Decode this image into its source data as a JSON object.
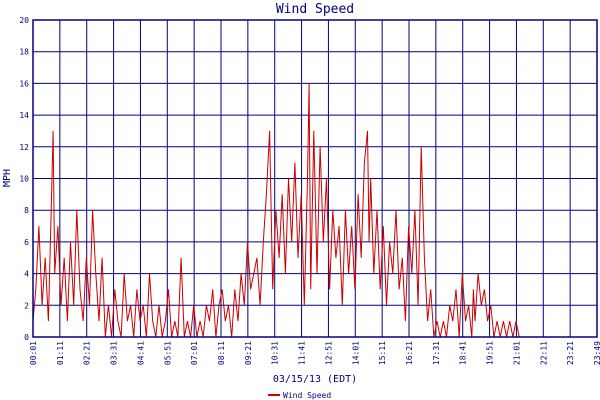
{
  "colors": {
    "grid": "#000080",
    "series": "#cc0000",
    "text": "#000080",
    "background": "#ffffff"
  },
  "chart_data": {
    "type": "line",
    "title": "Wind Speed",
    "xlabel": "03/15/13 (EDT)",
    "ylabel": "MPH",
    "ylim": [
      0,
      20
    ],
    "y_ticks": [
      0,
      2,
      4,
      6,
      8,
      10,
      12,
      14,
      16,
      18,
      20
    ],
    "x_ticks": [
      "00:01",
      "01:11",
      "02:21",
      "03:31",
      "04:41",
      "05:51",
      "07:01",
      "08:11",
      "09:21",
      "10:31",
      "11:41",
      "12:51",
      "14:01",
      "15:11",
      "16:21",
      "17:31",
      "18:41",
      "19:51",
      "21:01",
      "22:11",
      "23:21",
      "23:49"
    ],
    "x_unit": "minutes since 00:00",
    "grid": true,
    "legend_position": "bottom-left",
    "series": [
      {
        "name": "Wind Speed",
        "x": [
          1,
          8,
          16,
          24,
          32,
          40,
          48,
          52,
          56,
          64,
          72,
          80,
          88,
          96,
          104,
          112,
          120,
          128,
          136,
          144,
          152,
          160,
          168,
          176,
          184,
          192,
          200,
          208,
          216,
          224,
          232,
          240,
          248,
          256,
          264,
          272,
          280,
          288,
          296,
          304,
          312,
          320,
          328,
          336,
          344,
          352,
          360,
          368,
          376,
          384,
          392,
          400,
          408,
          416,
          424,
          432,
          440,
          448,
          456,
          464,
          472,
          480,
          488,
          496,
          504,
          512,
          520,
          528,
          536,
          544,
          552,
          560,
          568,
          576,
          584,
          592,
          600,
          608,
          616,
          624,
          632,
          640,
          648,
          656,
          664,
          672,
          680,
          688,
          696,
          700,
          704,
          712,
          720,
          728,
          736,
          744,
          752,
          760,
          768,
          776,
          784,
          792,
          800,
          808,
          816,
          824,
          832,
          840,
          848,
          852,
          856,
          864,
          872,
          880,
          888,
          896,
          904,
          912,
          920,
          928,
          936,
          944,
          952,
          960,
          968,
          976,
          984,
          992,
          1000,
          1008,
          1016,
          1024,
          1032,
          1040,
          1048,
          1056,
          1064,
          1072,
          1080,
          1088,
          1096,
          1104,
          1112,
          1116,
          1120,
          1128,
          1136,
          1144,
          1152,
          1160,
          1168,
          1176,
          1184,
          1192,
          1200,
          1208,
          1216,
          1224,
          1232,
          1240,
          1248,
          1256,
          1264,
          1272,
          1280,
          1288,
          1296,
          1304,
          1312,
          1320,
          1328,
          1336,
          1344,
          1352,
          1360,
          1368,
          1376,
          1384,
          1392,
          1400,
          1408,
          1416,
          1424,
          1429
        ],
        "y": [
          1,
          3,
          7,
          2,
          5,
          1,
          9,
          13,
          4,
          7,
          2,
          5,
          1,
          6,
          2,
          8,
          3,
          1,
          5,
          2,
          8,
          4,
          1,
          5,
          0,
          2,
          0,
          3,
          1,
          0,
          4,
          1,
          2,
          0,
          3,
          1,
          2,
          0,
          4,
          1,
          0,
          2,
          0,
          1,
          3,
          0,
          1,
          0,
          5,
          0,
          1,
          0,
          2,
          0,
          1,
          0,
          2,
          1,
          3,
          0,
          2,
          3,
          1,
          2,
          0,
          3,
          1,
          4,
          2,
          6,
          3,
          4,
          5,
          2,
          6,
          9,
          13,
          3,
          8,
          5,
          9,
          4,
          10,
          6,
          11,
          5,
          9,
          2,
          10,
          16,
          3,
          13,
          4,
          12,
          6,
          10,
          3,
          8,
          5,
          7,
          2,
          8,
          4,
          7,
          3,
          9,
          5,
          11,
          13,
          6,
          10,
          4,
          8,
          3,
          7,
          2,
          6,
          4,
          8,
          3,
          5,
          1,
          7,
          4,
          8,
          2,
          12,
          5,
          1,
          3,
          0,
          1,
          0,
          1,
          0,
          2,
          1,
          3,
          0,
          4,
          1,
          2,
          0,
          3,
          1,
          4,
          2,
          3,
          1,
          2,
          0,
          1,
          0,
          1,
          0,
          1,
          0,
          1,
          0,
          0,
          0,
          0,
          0,
          0,
          0,
          0,
          0,
          0,
          0,
          0,
          0,
          0,
          0,
          0,
          0,
          0,
          0,
          0,
          0,
          0,
          0,
          0,
          0,
          0
        ]
      }
    ]
  }
}
